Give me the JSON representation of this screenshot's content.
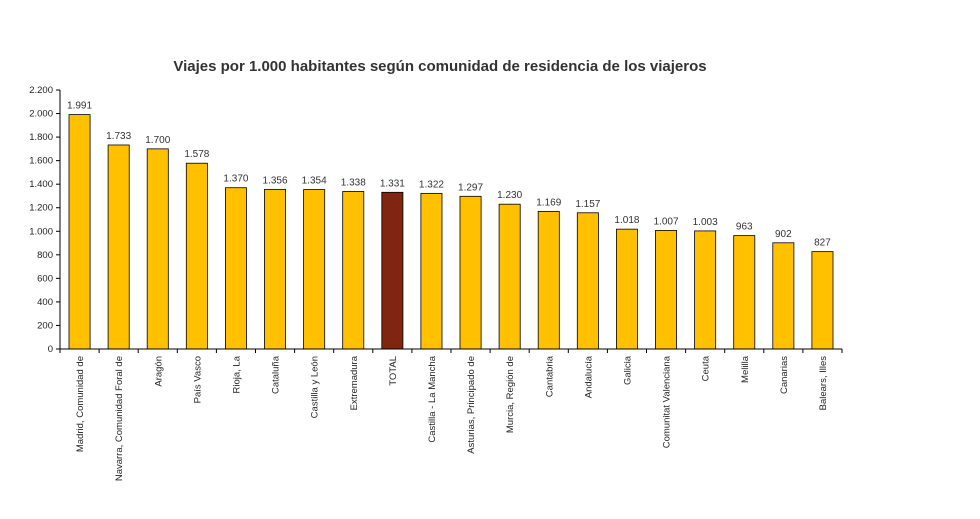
{
  "chart_data": {
    "type": "bar",
    "title": "Viajes por 1.000 habitantes según comunidad de residencia de los viajeros",
    "xlabel": "",
    "ylabel": "",
    "ylim": [
      0,
      2200
    ],
    "yticks": [
      0,
      200,
      400,
      600,
      800,
      1000,
      1200,
      1400,
      1600,
      1800,
      2000,
      2200
    ],
    "ytick_labels": [
      "0",
      "200",
      "400",
      "600",
      "800",
      "1.000",
      "1.200",
      "1.400",
      "1.600",
      "1.800",
      "2.000",
      "2.200"
    ],
    "grid": false,
    "categories": [
      "Madrid, Comunidad de",
      "Navarra, Comunidad Foral de",
      "Aragón",
      "País Vasco",
      "Rioja, La",
      "Cataluña",
      "Castilla y León",
      "Extremadura",
      "TOTAL",
      "Castilla - La Mancha",
      "Asturias, Principado de",
      "Murcia, Región de",
      "Cantabria",
      "Andalucía",
      "Galicia",
      "Comunitat Valenciana",
      "Ceuta",
      "Melilla",
      "Canarias",
      "Balears, Illes"
    ],
    "values": [
      1991,
      1733,
      1700,
      1578,
      1370,
      1356,
      1354,
      1338,
      1331,
      1322,
      1297,
      1230,
      1169,
      1157,
      1018,
      1007,
      1003,
      963,
      902,
      827
    ],
    "value_labels": [
      "1.991",
      "1.733",
      "1.700",
      "1.578",
      "1.370",
      "1.356",
      "1.354",
      "1.338",
      "1.331",
      "1.322",
      "1.297",
      "1.230",
      "1.169",
      "1.157",
      "1.018",
      "1.007",
      "1.003",
      "963",
      "902",
      "827"
    ],
    "colors": {
      "bar": "#FFC000",
      "highlight_bar": "#7F2510",
      "bar_stroke": "#000000",
      "axis": "#000000"
    },
    "highlight_category": "TOTAL"
  }
}
